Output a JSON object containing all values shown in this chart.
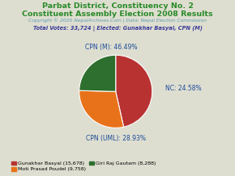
{
  "title_line1": "Parbat District, Constituency No. 2",
  "title_line2": "Constituent Assembly Election 2008 Results",
  "copyright": "Copyright © 2020 NepalArchives.Com | Data: Nepal Election Commission",
  "total_votes_line": "Total Votes: 33,724 | Elected: Gunakhar Basyal, CPN (M)",
  "slices": [
    {
      "label": "CPN (M)",
      "value": 15678,
      "pct": 46.49,
      "color": "#b83232"
    },
    {
      "label": "CPN (UML)",
      "value": 9758,
      "pct": 28.93,
      "color": "#e8721a"
    },
    {
      "label": "NC",
      "value": 8288,
      "pct": 24.58,
      "color": "#2e6e2e"
    }
  ],
  "legend_entries": [
    {
      "label": "Gunakhar Basyal (15,678)",
      "color": "#b83232"
    },
    {
      "label": "Moti Prasad Poudel (9,758)",
      "color": "#e8721a"
    },
    {
      "label": "Giri Raj Gautam (8,288)",
      "color": "#2e6e2e"
    }
  ],
  "title_color": "#2a8a2a",
  "copyright_color": "#5a9ab0",
  "total_votes_color": "#3a3a9a",
  "label_color": "#1a4a9a",
  "background_color": "#deded0"
}
